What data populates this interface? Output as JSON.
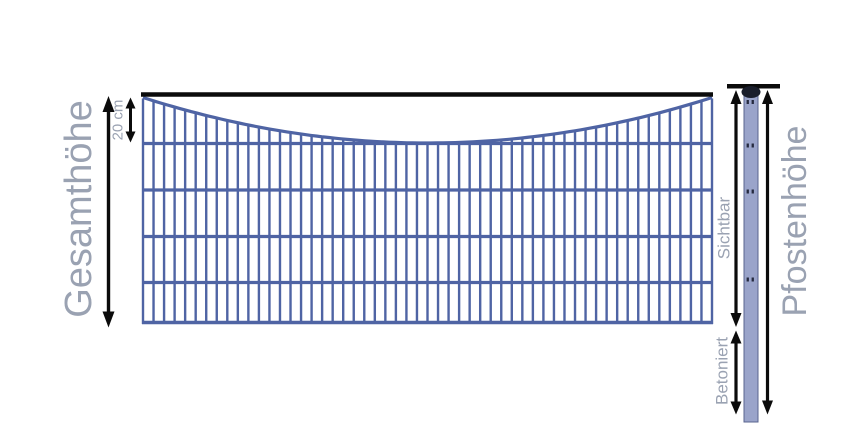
{
  "diagram": {
    "labels": {
      "total_height": "Gesamthöhe",
      "top_offset": "20 cm",
      "visible": "Sichtbar",
      "concreted": "Betoniert",
      "post_height": "Pfostenhöhe"
    },
    "colors": {
      "wire": "#4f64a4",
      "post_fill": "#9aa4ca",
      "post_edge": "#5a648f",
      "post_cap": "#1a1e2b",
      "clamp": "#262b40",
      "arrow": "#0b0b0b",
      "label_text": "#9aa2b2",
      "background": "#ffffff"
    }
  }
}
